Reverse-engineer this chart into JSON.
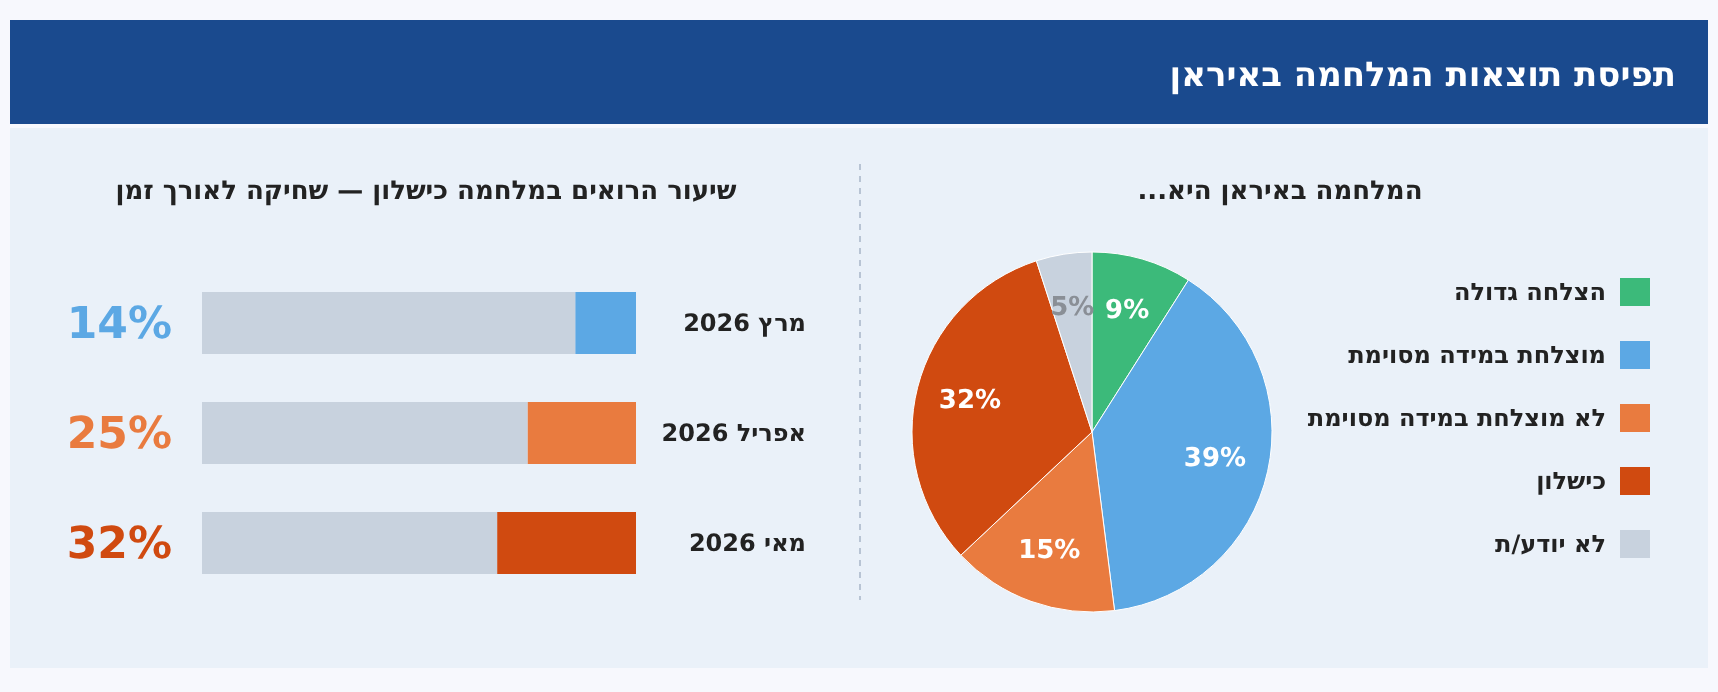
{
  "chart_data": [
    {
      "type": "pie",
      "title": "תפיסת תוצאות המלחמה באיראן",
      "subtitle": "המלחמה באיראן היא...",
      "categories": [
        "הצלחה גדולה",
        "מוצלחת במידה מסוימת",
        "לא מוצלחת במידה מסוימת",
        "כישלון",
        "לא יודע/ת"
      ],
      "values": [
        9,
        39,
        15,
        32,
        5
      ],
      "colors": [
        "#3cba7a",
        "#5ca8e4",
        "#e97b3f",
        "#d04a10",
        "#c8d2de"
      ],
      "value_labels": [
        "9%",
        "39%",
        "15%",
        "32%",
        "5%"
      ],
      "legend": "right"
    },
    {
      "type": "bar",
      "orientation": "horizontal",
      "stacked": true,
      "title": "שיעור הרואים במלחמה כישלון — שחיקה לאורך זמן",
      "categories": [
        "מרץ 2026",
        "אפריל 2026",
        "מאי 2026"
      ],
      "xlim": [
        100,
        0
      ],
      "tick_labels": "y",
      "series": [
        {
          "colors": [
            "#5ca8e4",
            "#e97b3f",
            "#d04a10"
          ],
          "values": [
            14,
            25,
            32
          ],
          "value_labels": [
            "14%",
            "25%",
            "32%"
          ]
        },
        {
          "color": "#c8d2de",
          "values": [
            86,
            75,
            68
          ]
        }
      ]
    }
  ]
}
